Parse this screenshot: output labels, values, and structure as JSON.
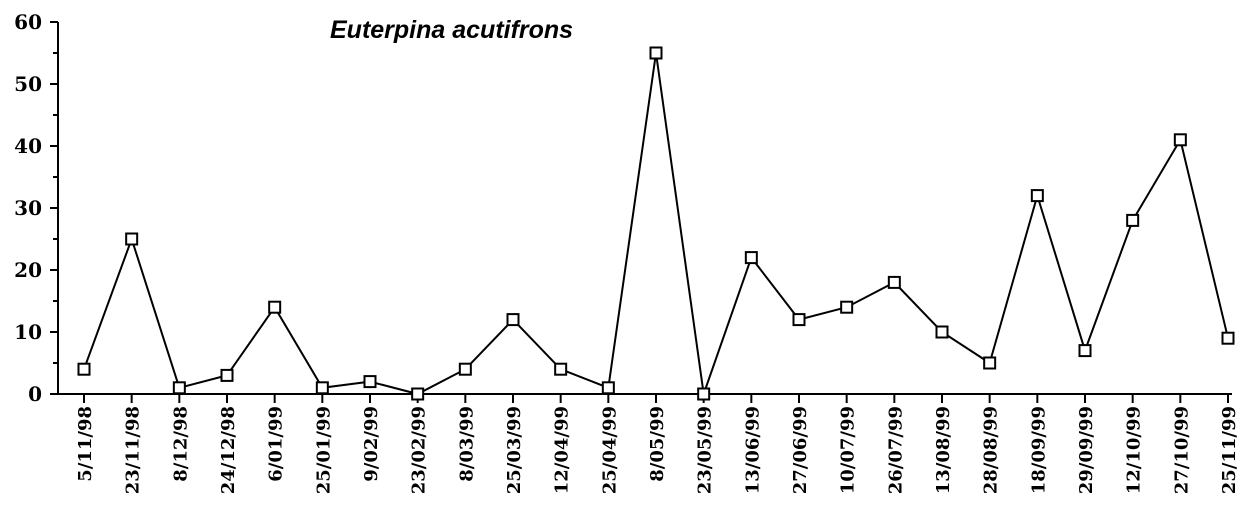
{
  "chart_data": {
    "type": "line",
    "title": "Euterpina acutifrons",
    "xlabel": "",
    "ylabel": "",
    "ylim": [
      0,
      60
    ],
    "yticks": [
      "0",
      "10",
      "20",
      "30",
      "40",
      "50",
      "60"
    ],
    "grid": false,
    "legend": "none",
    "categories": [
      "5/11/98",
      "23/11/98",
      "8/12/98",
      "24/12/98",
      "6/01/99",
      "25/01/99",
      "9/02/99",
      "23/02/99",
      "8/03/99",
      "25/03/99",
      "12/04/99",
      "25/04/99",
      "8/05/99",
      "23/05/99",
      "13/06/99",
      "27/06/99",
      "10/07/99",
      "26/07/99",
      "13/08/99",
      "28/08/99",
      "18/09/99",
      "29/09/99",
      "12/10/99",
      "27/10/99",
      "25/11/99"
    ],
    "values": [
      4,
      25,
      1,
      3,
      14,
      1,
      2,
      0,
      4,
      12,
      4,
      1,
      55,
      0,
      22,
      12,
      14,
      18,
      10,
      5,
      32,
      7,
      28,
      41,
      9
    ],
    "line_color": "#000000",
    "marker": "open-square"
  }
}
